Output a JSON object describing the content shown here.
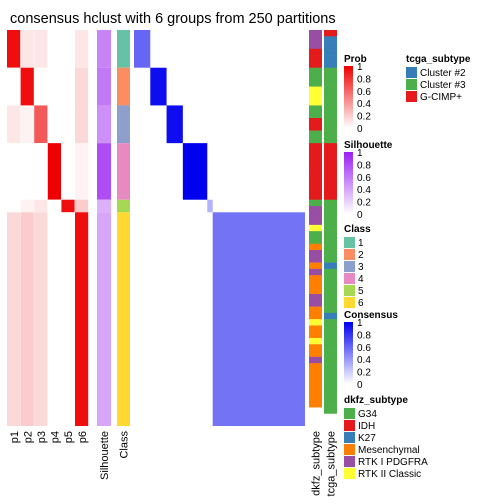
{
  "chart_data": {
    "type": "heatmap",
    "title": "consensus hclust with 6 groups from 250 partitions",
    "colors": {
      "prob_low": "#ffffff",
      "prob_high": "#ee0000",
      "silhouette_low": "#ffffff",
      "silhouette_high": "#9a20f0",
      "consensus_low": "#ffffff",
      "consensus_high": "#0000ee"
    },
    "prob_columns": [
      "p1",
      "p2",
      "p3",
      "p4",
      "p5",
      "p6"
    ],
    "silhouette_label": "Silhouette",
    "class_label": "Class",
    "annotation_columns": [
      "dkfz_subtype",
      "tcga_subtype"
    ],
    "class_colors": {
      "1": "#66c2a5",
      "2": "#fc8d62",
      "3": "#8da0cb",
      "4": "#e78ac3",
      "5": "#a6d854",
      "6": "#ffd92f"
    },
    "groups": [
      {
        "class": "1",
        "n": 6,
        "prob": [
          0.95,
          0.1,
          0.1,
          0.0,
          0.0,
          0.1
        ],
        "silhouette": 0.55,
        "consensus": 0.6
      },
      {
        "class": "2",
        "n": 6,
        "prob": [
          0.0,
          0.95,
          0.0,
          0.0,
          0.0,
          0.15
        ],
        "silhouette": 0.6,
        "consensus": 0.95
      },
      {
        "class": "3",
        "n": 6,
        "prob": [
          0.1,
          0.05,
          0.65,
          0.0,
          0.0,
          0.15
        ],
        "silhouette": 0.5,
        "consensus": 0.95
      },
      {
        "class": "4",
        "n": 9,
        "prob": [
          0.0,
          0.0,
          0.0,
          1.0,
          0.0,
          0.05
        ],
        "silhouette": 0.8,
        "consensus": 1.0
      },
      {
        "class": "5",
        "n": 2,
        "prob": [
          0.0,
          0.05,
          0.1,
          0.0,
          0.95,
          0.2
        ],
        "silhouette": 0.35,
        "consensus": 0.3
      },
      {
        "class": "6",
        "n": 34,
        "prob": [
          0.15,
          0.2,
          0.15,
          0.0,
          0.0,
          0.95
        ],
        "silhouette": 0.4,
        "consensus": 0.55
      }
    ],
    "dkfz_sequence": [
      [
        "RTK I PDGFRA",
        3
      ],
      [
        "IDH",
        3
      ],
      [
        "G34",
        3
      ],
      [
        "RTK II Classic",
        3
      ],
      [
        "G34",
        2
      ],
      [
        "IDH",
        2
      ],
      [
        "G34",
        2
      ],
      [
        "IDH",
        9
      ],
      [
        "G34",
        1
      ],
      [
        "RTK I PDGFRA",
        3
      ],
      [
        "RTK II Classic",
        1
      ],
      [
        "G34",
        2
      ],
      [
        "Mesenchymal",
        1
      ],
      [
        "RTK I PDGFRA",
        2
      ],
      [
        "Mesenchymal",
        1
      ],
      [
        "RTK I PDGFRA",
        1
      ],
      [
        "Mesenchymal",
        3
      ],
      [
        "RTK I PDGFRA",
        2
      ],
      [
        "Mesenchymal",
        2
      ],
      [
        "RTK II Classic",
        1
      ],
      [
        "Mesenchymal",
        2
      ],
      [
        "RTK II Classic",
        1
      ],
      [
        "Mesenchymal",
        2
      ],
      [
        "RTK I PDGFRA",
        1
      ],
      [
        "Mesenchymal",
        7
      ]
    ],
    "tcga_sequence": [
      [
        "G-CIMP+",
        1
      ],
      [
        "Cluster #2",
        5
      ],
      [
        "Cluster #3",
        6
      ],
      [
        "Cluster #3",
        6
      ],
      [
        "G-CIMP+",
        9
      ],
      [
        "Cluster #3",
        2
      ],
      [
        "Cluster #3",
        8
      ],
      [
        "Cluster #2",
        1
      ],
      [
        "Cluster #3",
        7
      ],
      [
        "Cluster #2",
        1
      ],
      [
        "Cluster #3",
        15
      ]
    ],
    "legends": {
      "tcga_subtype": {
        "title": "tcga_subtype",
        "items": [
          {
            "label": "Cluster #2",
            "color": "#377eb8"
          },
          {
            "label": "Cluster #3",
            "color": "#4daf4a"
          },
          {
            "label": "G-CIMP+",
            "color": "#e41a1c"
          }
        ]
      },
      "prob": {
        "title": "Prob",
        "ticks": [
          "1",
          "0.8",
          "0.6",
          "0.4",
          "0.2",
          "0"
        ]
      },
      "silhouette": {
        "title": "Silhouette",
        "ticks": [
          "1",
          "0.8",
          "0.6",
          "0.4",
          "0.2",
          "0"
        ]
      },
      "class": {
        "title": "Class",
        "items": [
          {
            "label": "1",
            "color": "#66c2a5"
          },
          {
            "label": "2",
            "color": "#fc8d62"
          },
          {
            "label": "3",
            "color": "#8da0cb"
          },
          {
            "label": "4",
            "color": "#e78ac3"
          },
          {
            "label": "5",
            "color": "#a6d854"
          },
          {
            "label": "6",
            "color": "#ffd92f"
          }
        ]
      },
      "consensus": {
        "title": "Consensus",
        "ticks": [
          "1",
          "0.8",
          "0.6",
          "0.4",
          "0.2",
          "0"
        ]
      },
      "dkfz_subtype": {
        "title": "dkfz_subtype",
        "items": [
          {
            "label": "G34",
            "color": "#4daf4a"
          },
          {
            "label": "IDH",
            "color": "#e41a1c"
          },
          {
            "label": "K27",
            "color": "#377eb8"
          },
          {
            "label": "Mesenchymal",
            "color": "#ff7f00"
          },
          {
            "label": "RTK I PDGFRA",
            "color": "#984ea3"
          },
          {
            "label": "RTK II Classic",
            "color": "#ffff33"
          }
        ]
      }
    }
  }
}
